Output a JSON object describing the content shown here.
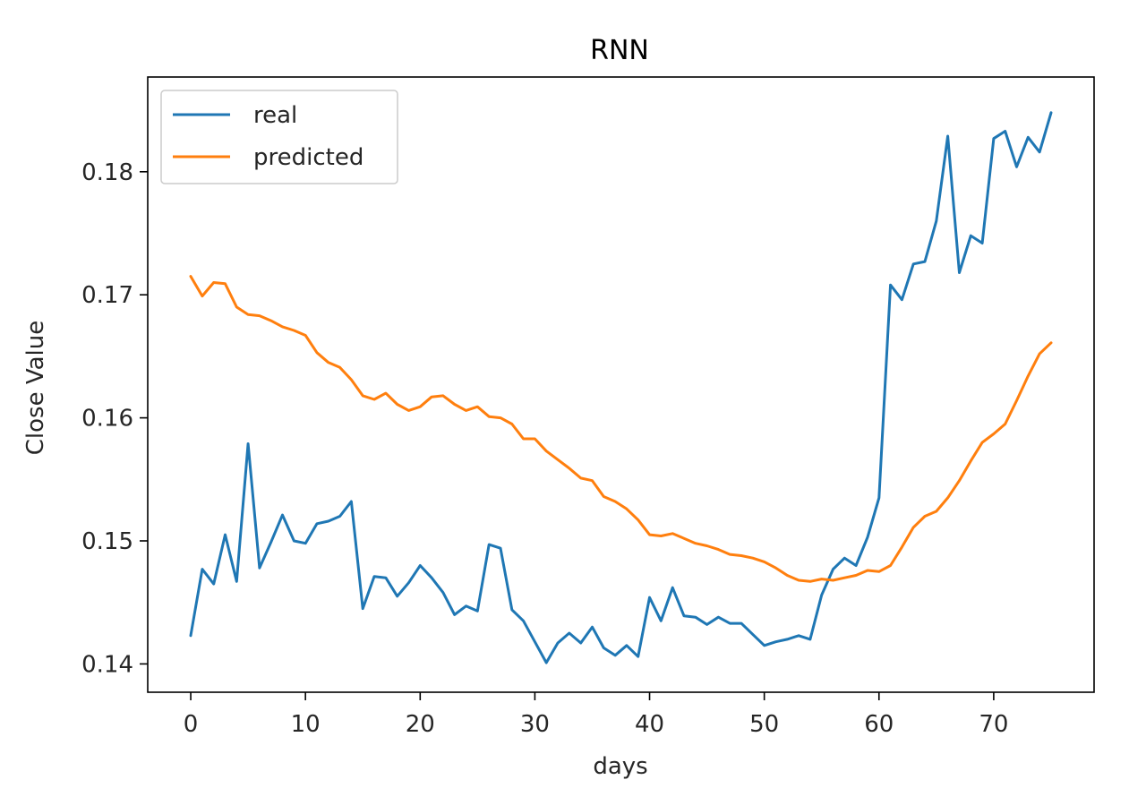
{
  "chart_data": {
    "type": "line",
    "title": "RNN",
    "xlabel": "days",
    "ylabel": "Close Value",
    "xlim": [
      -3.75,
      78.75
    ],
    "ylim": [
      0.1377,
      0.1877
    ],
    "xticks": [
      0,
      10,
      20,
      30,
      40,
      50,
      60,
      70
    ],
    "xtick_labels": [
      "0",
      "10",
      "20",
      "30",
      "40",
      "50",
      "60",
      "70"
    ],
    "yticks": [
      0.14,
      0.15,
      0.16,
      0.17,
      0.18
    ],
    "ytick_labels": [
      "0.14",
      "0.15",
      "0.16",
      "0.17",
      "0.18"
    ],
    "grid": false,
    "legend_position": "top-left",
    "x": [
      0,
      1,
      2,
      3,
      4,
      5,
      6,
      7,
      8,
      9,
      10,
      11,
      12,
      13,
      14,
      15,
      16,
      17,
      18,
      19,
      20,
      21,
      22,
      23,
      24,
      25,
      26,
      27,
      28,
      29,
      30,
      31,
      32,
      33,
      34,
      35,
      36,
      37,
      38,
      39,
      40,
      41,
      42,
      43,
      44,
      45,
      46,
      47,
      48,
      49,
      50,
      51,
      52,
      53,
      54,
      55,
      56,
      57,
      58,
      59,
      60,
      61,
      62,
      63,
      64,
      65,
      66,
      67,
      68,
      69,
      70,
      71,
      72,
      73,
      74,
      75
    ],
    "series": [
      {
        "name": "real",
        "color": "#1f77b4",
        "values": [
          0.1423,
          0.1477,
          0.1465,
          0.1505,
          0.1467,
          0.1579,
          0.1478,
          0.1499,
          0.1521,
          0.15,
          0.1498,
          0.1514,
          0.1516,
          0.152,
          0.1532,
          0.1445,
          0.1471,
          0.147,
          0.1455,
          0.1466,
          0.148,
          0.147,
          0.1458,
          0.144,
          0.1447,
          0.1443,
          0.1497,
          0.1494,
          0.1444,
          0.1435,
          0.1418,
          0.1401,
          0.1417,
          0.1425,
          0.1417,
          0.143,
          0.1413,
          0.1407,
          0.1415,
          0.1406,
          0.1454,
          0.1435,
          0.1462,
          0.1439,
          0.1438,
          0.1432,
          0.1438,
          0.1433,
          0.1433,
          0.1424,
          0.1415,
          0.1418,
          0.142,
          0.1423,
          0.142,
          0.1456,
          0.1477,
          0.1486,
          0.148,
          0.1503,
          0.1535,
          0.1708,
          0.1696,
          0.1725,
          0.1727,
          0.176,
          0.1829,
          0.1718,
          0.1748,
          0.1742,
          0.1827,
          0.1833,
          0.1804,
          0.1828,
          0.1816,
          0.1848
        ]
      },
      {
        "name": "predicted",
        "color": "#ff7f0e",
        "values": [
          0.1715,
          0.1699,
          0.171,
          0.1709,
          0.169,
          0.1684,
          0.1683,
          0.1679,
          0.1674,
          0.1671,
          0.1667,
          0.1653,
          0.1645,
          0.1641,
          0.1631,
          0.1618,
          0.1615,
          0.162,
          0.1611,
          0.1606,
          0.1609,
          0.1617,
          0.1618,
          0.1611,
          0.1606,
          0.1609,
          0.1601,
          0.16,
          0.1595,
          0.1583,
          0.1583,
          0.1573,
          0.1566,
          0.1559,
          0.1551,
          0.1549,
          0.1536,
          0.1532,
          0.1526,
          0.1517,
          0.1505,
          0.1504,
          0.1506,
          0.1502,
          0.1498,
          0.1496,
          0.1493,
          0.1489,
          0.1488,
          0.1486,
          0.1483,
          0.1478,
          0.1472,
          0.1468,
          0.1467,
          0.1469,
          0.1468,
          0.147,
          0.1472,
          0.1476,
          0.1475,
          0.148,
          0.1495,
          0.1511,
          0.152,
          0.1524,
          0.1535,
          0.1549,
          0.1565,
          0.158,
          0.1587,
          0.1595,
          0.1614,
          0.1634,
          0.1652,
          0.1661
        ]
      }
    ]
  }
}
